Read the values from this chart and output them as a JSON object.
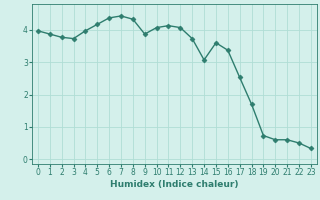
{
  "x": [
    0,
    1,
    2,
    3,
    4,
    5,
    6,
    7,
    8,
    9,
    10,
    11,
    12,
    13,
    14,
    15,
    16,
    17,
    18,
    19,
    20,
    21,
    22,
    23
  ],
  "y": [
    3.97,
    3.87,
    3.77,
    3.73,
    3.97,
    4.17,
    4.37,
    4.43,
    4.33,
    3.87,
    4.07,
    4.13,
    4.07,
    3.73,
    3.07,
    3.6,
    3.37,
    2.53,
    1.7,
    0.73,
    0.6,
    0.6,
    0.5,
    0.33
  ],
  "line_color": "#2e7d6e",
  "marker": "D",
  "markersize": 2.5,
  "linewidth": 1.0,
  "xlabel": "Humidex (Indice chaleur)",
  "xlim": [
    -0.5,
    23.5
  ],
  "ylim": [
    -0.15,
    4.8
  ],
  "yticks": [
    0,
    1,
    2,
    3,
    4
  ],
  "xticks": [
    0,
    1,
    2,
    3,
    4,
    5,
    6,
    7,
    8,
    9,
    10,
    11,
    12,
    13,
    14,
    15,
    16,
    17,
    18,
    19,
    20,
    21,
    22,
    23
  ],
  "bg_color": "#d4f0eb",
  "grid_color": "#b0ddd5",
  "xlabel_fontsize": 6.5,
  "tick_fontsize": 5.5
}
